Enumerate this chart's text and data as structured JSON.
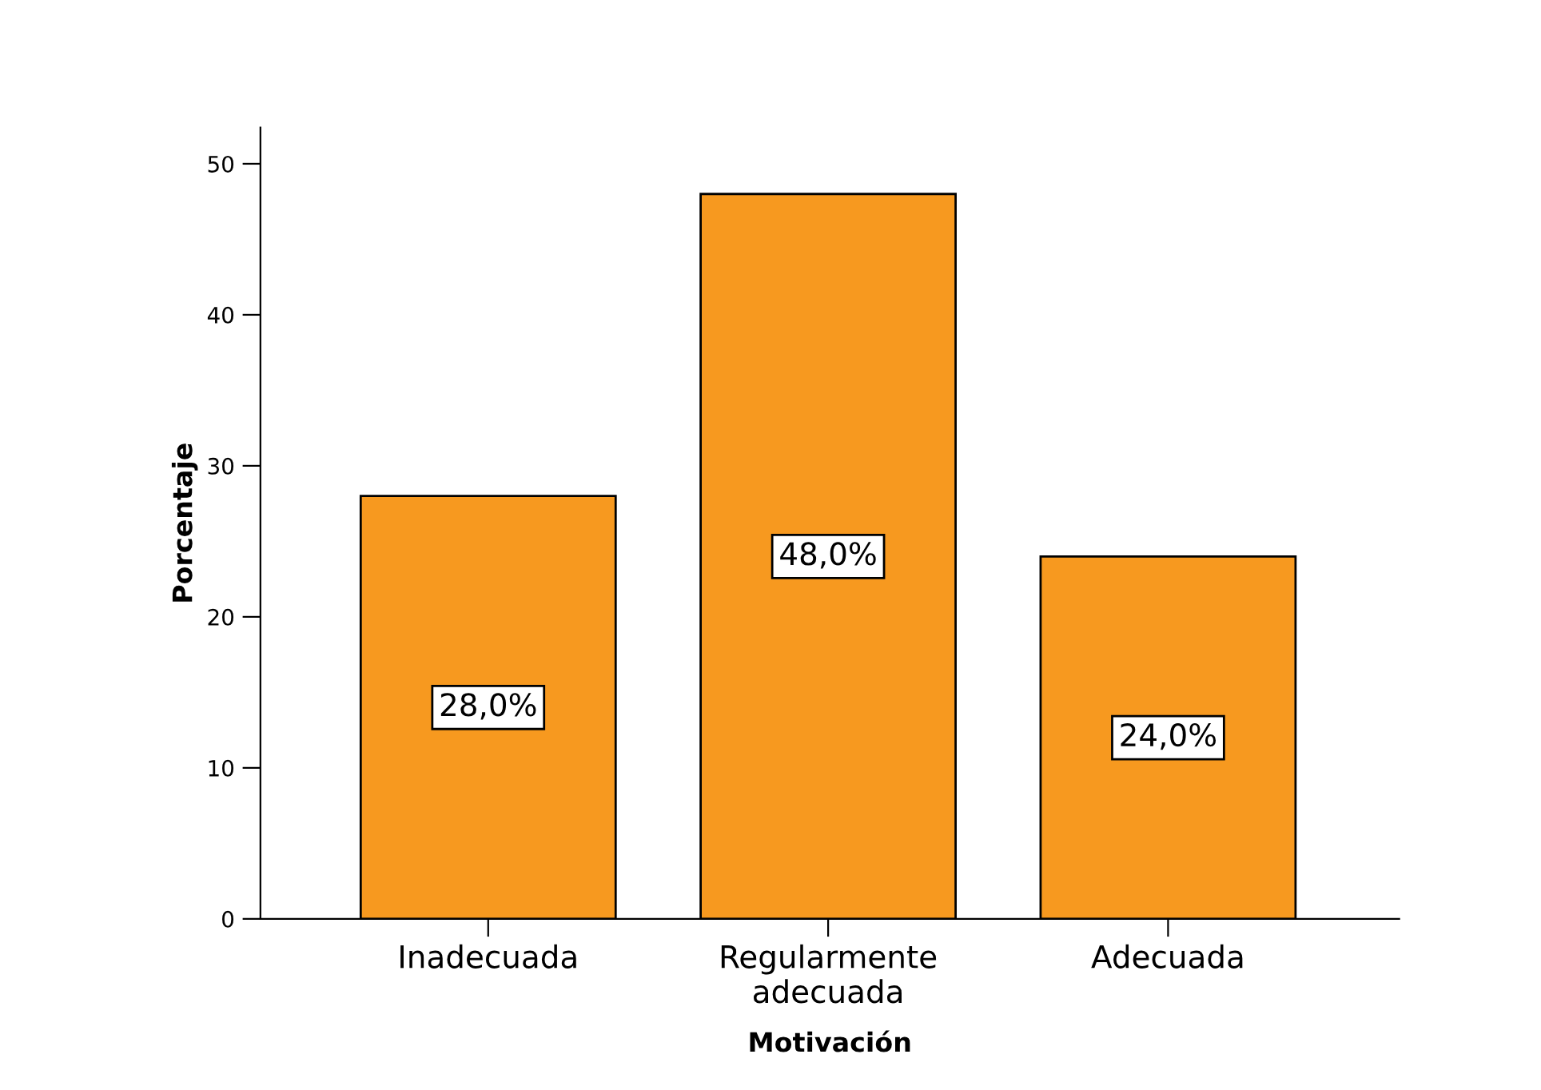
{
  "chart_data": {
    "type": "bar",
    "xlabel": "Motivación",
    "ylabel": "Porcentaje",
    "categories": [
      "Inadecuada",
      "Regularmente\nadecuada",
      "Adecuada"
    ],
    "values": [
      28.0,
      48.0,
      24.0
    ],
    "color": "#f7991f",
    "value_labels": [
      "28,0%",
      "48,0%",
      "24,0%"
    ],
    "ylim": [
      0,
      52.4
    ],
    "yticks": [
      0,
      10,
      20,
      30,
      40,
      50
    ],
    "grid": false
  }
}
